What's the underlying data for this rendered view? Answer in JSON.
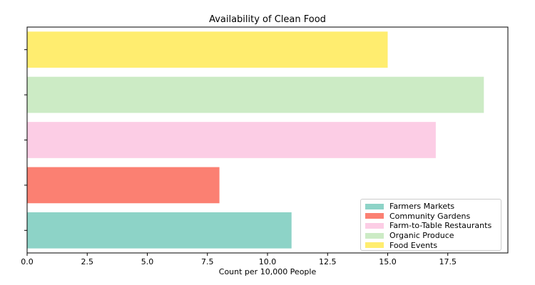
{
  "chart_data": {
    "type": "bar",
    "orientation": "horizontal",
    "title": "Availability of Clean Food",
    "xlabel": "Count per 10,000 People",
    "ylabel": "",
    "categories": [
      "Farmers Markets",
      "Community Gardens",
      "Farm-to-Table Restaurants",
      "Organic Produce",
      "Food Events"
    ],
    "values": [
      11,
      8,
      17,
      19,
      15
    ],
    "colors": [
      "#8dd3c7",
      "#fb8072",
      "#fccde5",
      "#ccebc5",
      "#ffed6f"
    ],
    "xlim": [
      0,
      20
    ],
    "xticks": [
      "0.0",
      "2.5",
      "5.0",
      "7.5",
      "10.0",
      "12.5",
      "15.0",
      "17.5"
    ],
    "xtick_values": [
      0,
      2.5,
      5,
      7.5,
      10,
      12.5,
      15,
      17.5
    ],
    "grid": false,
    "legend": {
      "position": "lower-right",
      "entries": [
        "Farmers Markets",
        "Community Gardens",
        "Farm-to-Table Restaurants",
        "Organic Produce",
        "Food Events"
      ]
    }
  }
}
